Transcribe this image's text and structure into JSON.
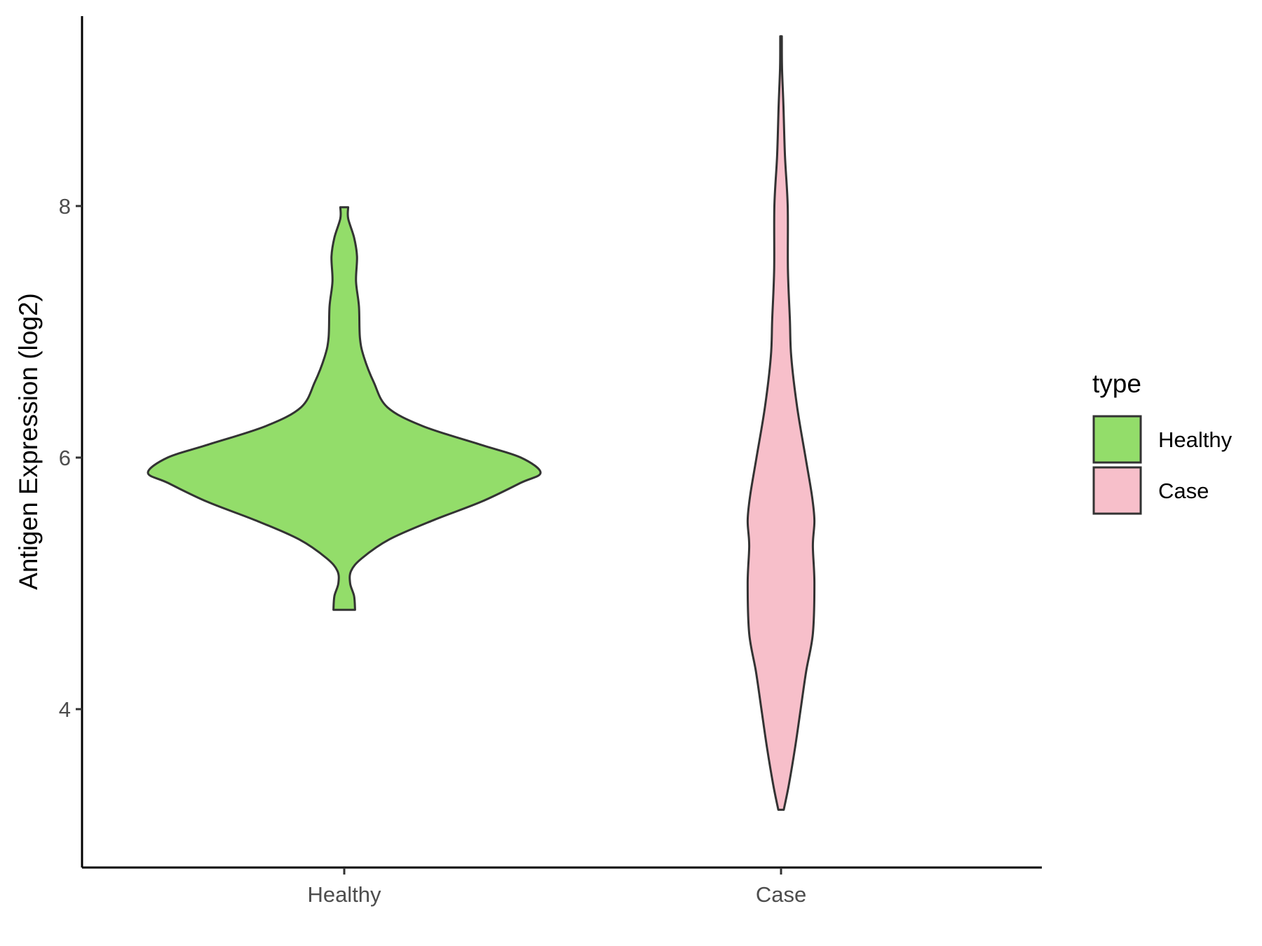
{
  "chart_data": {
    "type": "violin",
    "title": "",
    "xlabel": "",
    "ylabel": "Antigen Expression (log2)",
    "categories": [
      "Healthy",
      "Case"
    ],
    "yticks": [
      4,
      6,
      8
    ],
    "ylim": [
      2.8,
      9.55
    ],
    "grid": false,
    "legend": {
      "title": "type",
      "position": "right",
      "entries": [
        {
          "label": "Healthy",
          "color": "#93dd6a"
        },
        {
          "label": "Case",
          "color": "#f7bfca"
        }
      ]
    },
    "series": [
      {
        "name": "Healthy",
        "color": "#93dd6a",
        "min": 4.79,
        "max": 7.99,
        "density": [
          [
            4.79,
            0.055
          ],
          [
            4.9,
            0.05
          ],
          [
            5.0,
            0.03
          ],
          [
            5.1,
            0.035
          ],
          [
            5.2,
            0.09
          ],
          [
            5.35,
            0.23
          ],
          [
            5.5,
            0.45
          ],
          [
            5.65,
            0.7
          ],
          [
            5.8,
            0.9
          ],
          [
            5.88,
            1.0
          ],
          [
            6.0,
            0.9
          ],
          [
            6.1,
            0.7
          ],
          [
            6.25,
            0.4
          ],
          [
            6.4,
            0.22
          ],
          [
            6.6,
            0.15
          ],
          [
            6.8,
            0.1
          ],
          [
            6.95,
            0.08
          ],
          [
            7.2,
            0.075
          ],
          [
            7.4,
            0.06
          ],
          [
            7.6,
            0.065
          ],
          [
            7.75,
            0.05
          ],
          [
            7.9,
            0.02
          ],
          [
            7.99,
            0.02
          ]
        ]
      },
      {
        "name": "Case",
        "color": "#f7bfca",
        "min": 3.2,
        "max": 9.35,
        "density": [
          [
            3.2,
            0.014
          ],
          [
            3.4,
            0.04
          ],
          [
            3.7,
            0.072
          ],
          [
            4.0,
            0.1
          ],
          [
            4.3,
            0.128
          ],
          [
            4.6,
            0.162
          ],
          [
            5.0,
            0.17
          ],
          [
            5.3,
            0.162
          ],
          [
            5.5,
            0.17
          ],
          [
            5.7,
            0.157
          ],
          [
            6.0,
            0.125
          ],
          [
            6.4,
            0.082
          ],
          [
            6.8,
            0.052
          ],
          [
            7.1,
            0.045
          ],
          [
            7.5,
            0.035
          ],
          [
            8.0,
            0.034
          ],
          [
            8.4,
            0.02
          ],
          [
            8.8,
            0.012
          ],
          [
            9.1,
            0.005
          ],
          [
            9.35,
            0.004
          ]
        ]
      }
    ]
  }
}
